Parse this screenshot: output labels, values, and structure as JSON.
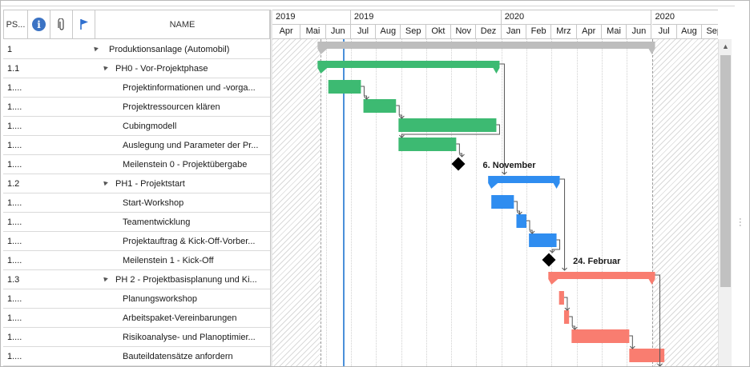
{
  "grid": {
    "headers": {
      "psp": "PS...",
      "name": "NAME"
    },
    "rows": [
      {
        "psp": "1",
        "name": "Produktionsanlage (Automobil)",
        "level": 0,
        "collapsible": true
      },
      {
        "psp": "1.1",
        "name": "PH0 - Vor-Projektphase",
        "level": 1,
        "collapsible": true
      },
      {
        "psp": "1....",
        "name": "Projektinformationen und -vorga...",
        "level": 2,
        "collapsible": false
      },
      {
        "psp": "1....",
        "name": "Projektressourcen klären",
        "level": 2,
        "collapsible": false
      },
      {
        "psp": "1....",
        "name": "Cubingmodell",
        "level": 2,
        "collapsible": false
      },
      {
        "psp": "1....",
        "name": "Auslegung und Parameter der Pr...",
        "level": 2,
        "collapsible": false
      },
      {
        "psp": "1....",
        "name": "Meilenstein 0 - Projektübergabe",
        "level": 2,
        "collapsible": false
      },
      {
        "psp": "1.2",
        "name": "PH1 - Projektstart",
        "level": 1,
        "collapsible": true
      },
      {
        "psp": "1....",
        "name": "Start-Workshop",
        "level": 2,
        "collapsible": false
      },
      {
        "psp": "1....",
        "name": "Teamentwicklung",
        "level": 2,
        "collapsible": false
      },
      {
        "psp": "1....",
        "name": "Projektauftrag & Kick-Off-Vorber...",
        "level": 2,
        "collapsible": false
      },
      {
        "psp": "1....",
        "name": "Meilenstein 1 - Kick-Off",
        "level": 2,
        "collapsible": false
      },
      {
        "psp": "1.3",
        "name": "PH 2 - Projektbasisplanung und Ki...",
        "level": 1,
        "collapsible": true
      },
      {
        "psp": "1....",
        "name": "Planungsworkshop",
        "level": 2,
        "collapsible": false
      },
      {
        "psp": "1....",
        "name": "Arbeitspaket-Vereinbarungen",
        "level": 2,
        "collapsible": false
      },
      {
        "psp": "1....",
        "name": "Risikoanalyse- und Planoptimier...",
        "level": 2,
        "collapsible": false
      },
      {
        "psp": "1....",
        "name": "Bauteildatensätze anfordern",
        "level": 2,
        "collapsible": false
      }
    ]
  },
  "timeline": {
    "years": [
      {
        "label": "2019",
        "from": 0,
        "to": 3
      },
      {
        "label": "2019",
        "from": 3,
        "to": 9
      },
      {
        "label": "2020",
        "from": 9,
        "to": 15
      },
      {
        "label": "2020",
        "from": 15,
        "to": 18
      }
    ],
    "months": [
      "Apr",
      "Mai",
      "Jun",
      "Jul",
      "Aug",
      "Sep",
      "Okt",
      "Nov",
      "Dez",
      "Jan",
      "Feb",
      "Mrz",
      "Apr",
      "Mai",
      "Jun",
      "Jul",
      "Aug",
      "Sep"
    ]
  },
  "gantt": {
    "colors": {
      "phase0": "#3dba72",
      "phase1": "#2f8df0",
      "phase2": "#f97d70",
      "summary": "#bdbdbd",
      "milestone": "#000000",
      "today": "#4a90d9"
    },
    "summary": {
      "row": 0,
      "start": 1.8,
      "end": 15.0
    },
    "phases": [
      {
        "row": 1,
        "start": 1.8,
        "end": 8.8,
        "color": "phase0"
      },
      {
        "row": 7,
        "start": 8.6,
        "end": 11.2,
        "color": "phase1"
      },
      {
        "row": 12,
        "start": 11.0,
        "end": 15.0,
        "color": "phase2"
      }
    ],
    "tasks": [
      {
        "row": 2,
        "start": 2.1,
        "end": 3.4,
        "color": "phase0"
      },
      {
        "row": 3,
        "start": 3.5,
        "end": 4.8,
        "color": "phase0"
      },
      {
        "row": 4,
        "start": 4.9,
        "end": 8.8,
        "color": "phase0"
      },
      {
        "row": 5,
        "start": 4.9,
        "end": 7.2,
        "color": "phase0"
      },
      {
        "row": 8,
        "start": 8.6,
        "end": 9.5,
        "color": "phase1"
      },
      {
        "row": 9,
        "start": 9.6,
        "end": 10.0,
        "color": "phase1"
      },
      {
        "row": 10,
        "start": 10.1,
        "end": 11.2,
        "color": "phase1"
      },
      {
        "row": 13,
        "start": 11.3,
        "end": 11.5,
        "color": "phase2"
      },
      {
        "row": 14,
        "start": 11.5,
        "end": 11.7,
        "color": "phase2"
      },
      {
        "row": 15,
        "start": 11.8,
        "end": 14.1,
        "color": "phase2"
      },
      {
        "row": 16,
        "start": 14.1,
        "end": 15.5,
        "color": "phase2"
      }
    ],
    "milestones": [
      {
        "row": 6,
        "at": 7.3,
        "label": ""
      },
      {
        "row": 11,
        "at": 10.9,
        "label": ""
      }
    ],
    "annotations": [
      {
        "row": 6,
        "text": "6. November"
      },
      {
        "row": 11,
        "text": "24. Februar"
      }
    ]
  }
}
